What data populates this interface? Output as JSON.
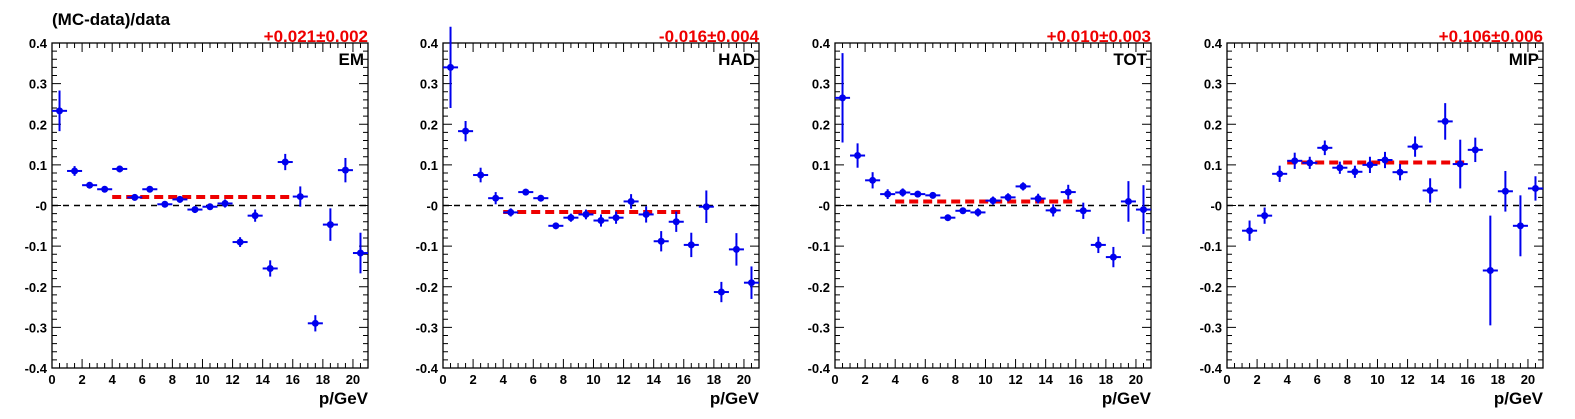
{
  "ylabel": "(MC-data)/data",
  "colors": {
    "points": "#0000ee",
    "fit": "#ee0000",
    "zero": "#000000",
    "fit_text": "#ee0000"
  },
  "chart_data": [
    {
      "type": "scatter",
      "panel_label": "EM",
      "fit_text": "+0.021±0.002",
      "fit": {
        "value": 0.021,
        "x_range": [
          4,
          16
        ]
      },
      "xlabel": "p/GeV",
      "xlim": [
        0,
        21
      ],
      "ylim": [
        -0.4,
        0.4
      ],
      "xticks": [
        0,
        2,
        4,
        6,
        8,
        10,
        12,
        14,
        16,
        18,
        20
      ],
      "yticks": [
        -0.4,
        -0.3,
        -0.2,
        -0.1,
        0,
        0.1,
        0.2,
        0.3,
        0.4
      ],
      "ytick_labels": [
        "-0.4",
        "-0.3",
        "-0.2",
        "-0.1",
        "-0",
        "0.1",
        "0.2",
        "0.3",
        "0.4"
      ],
      "points": [
        {
          "x": 0.5,
          "y": 0.233,
          "err": 0.05
        },
        {
          "x": 1.5,
          "y": 0.085,
          "err": 0.012
        },
        {
          "x": 2.5,
          "y": 0.05,
          "err": 0.008
        },
        {
          "x": 3.5,
          "y": 0.04,
          "err": 0.008
        },
        {
          "x": 4.5,
          "y": 0.09,
          "err": 0.008
        },
        {
          "x": 5.5,
          "y": 0.02,
          "err": 0.008
        },
        {
          "x": 6.5,
          "y": 0.04,
          "err": 0.008
        },
        {
          "x": 7.5,
          "y": 0.003,
          "err": 0.008
        },
        {
          "x": 8.5,
          "y": 0.015,
          "err": 0.008
        },
        {
          "x": 9.5,
          "y": -0.01,
          "err": 0.008
        },
        {
          "x": 10.5,
          "y": -0.003,
          "err": 0.008
        },
        {
          "x": 11.5,
          "y": 0.005,
          "err": 0.01
        },
        {
          "x": 12.5,
          "y": -0.09,
          "err": 0.012
        },
        {
          "x": 13.5,
          "y": -0.025,
          "err": 0.015
        },
        {
          "x": 14.5,
          "y": -0.155,
          "err": 0.02
        },
        {
          "x": 15.5,
          "y": 0.107,
          "err": 0.02
        },
        {
          "x": 16.5,
          "y": 0.022,
          "err": 0.025
        },
        {
          "x": 17.5,
          "y": -0.29,
          "err": 0.02
        },
        {
          "x": 18.5,
          "y": -0.047,
          "err": 0.04
        },
        {
          "x": 19.5,
          "y": 0.087,
          "err": 0.03
        },
        {
          "x": 20.5,
          "y": -0.117,
          "err": 0.05
        }
      ]
    },
    {
      "type": "scatter",
      "panel_label": "HAD",
      "fit_text": "-0.016±0.004",
      "fit": {
        "value": -0.016,
        "x_range": [
          4,
          16
        ]
      },
      "xlabel": "p/GeV",
      "xlim": [
        0,
        21
      ],
      "ylim": [
        -0.4,
        0.4
      ],
      "xticks": [
        0,
        2,
        4,
        6,
        8,
        10,
        12,
        14,
        16,
        18,
        20
      ],
      "yticks": [
        -0.4,
        -0.3,
        -0.2,
        -0.1,
        0,
        0.1,
        0.2,
        0.3,
        0.4
      ],
      "ytick_labels": [
        "-0.4",
        "-0.3",
        "-0.2",
        "-0.1",
        "-0",
        "0.1",
        "0.2",
        "0.3",
        "0.4"
      ],
      "points": [
        {
          "x": 0.5,
          "y": 0.34,
          "err": 0.1
        },
        {
          "x": 1.5,
          "y": 0.183,
          "err": 0.025
        },
        {
          "x": 2.5,
          "y": 0.075,
          "err": 0.018
        },
        {
          "x": 3.5,
          "y": 0.018,
          "err": 0.015
        },
        {
          "x": 4.5,
          "y": -0.017,
          "err": 0.01
        },
        {
          "x": 5.5,
          "y": 0.033,
          "err": 0.008
        },
        {
          "x": 6.5,
          "y": 0.018,
          "err": 0.008
        },
        {
          "x": 7.5,
          "y": -0.05,
          "err": 0.008
        },
        {
          "x": 8.5,
          "y": -0.03,
          "err": 0.01
        },
        {
          "x": 9.5,
          "y": -0.022,
          "err": 0.012
        },
        {
          "x": 10.5,
          "y": -0.037,
          "err": 0.015
        },
        {
          "x": 11.5,
          "y": -0.03,
          "err": 0.015
        },
        {
          "x": 12.5,
          "y": 0.01,
          "err": 0.018
        },
        {
          "x": 13.5,
          "y": -0.022,
          "err": 0.02
        },
        {
          "x": 14.5,
          "y": -0.088,
          "err": 0.025
        },
        {
          "x": 15.5,
          "y": -0.04,
          "err": 0.025
        },
        {
          "x": 16.5,
          "y": -0.097,
          "err": 0.03
        },
        {
          "x": 17.5,
          "y": -0.003,
          "err": 0.04
        },
        {
          "x": 18.5,
          "y": -0.213,
          "err": 0.025
        },
        {
          "x": 19.5,
          "y": -0.108,
          "err": 0.04
        },
        {
          "x": 20.5,
          "y": -0.19,
          "err": 0.04
        }
      ]
    },
    {
      "type": "scatter",
      "panel_label": "TOT",
      "fit_text": "+0.010±0.003",
      "fit": {
        "value": 0.01,
        "x_range": [
          4,
          16
        ]
      },
      "xlabel": "p/GeV",
      "xlim": [
        0,
        21
      ],
      "ylim": [
        -0.4,
        0.4
      ],
      "xticks": [
        0,
        2,
        4,
        6,
        8,
        10,
        12,
        14,
        16,
        18,
        20
      ],
      "yticks": [
        -0.4,
        -0.3,
        -0.2,
        -0.1,
        0,
        0.1,
        0.2,
        0.3,
        0.4
      ],
      "ytick_labels": [
        "-0.4",
        "-0.3",
        "-0.2",
        "-0.1",
        "-0",
        "0.1",
        "0.2",
        "0.3",
        "0.4"
      ],
      "points": [
        {
          "x": 0.5,
          "y": 0.265,
          "err": 0.11
        },
        {
          "x": 1.5,
          "y": 0.123,
          "err": 0.03
        },
        {
          "x": 2.5,
          "y": 0.062,
          "err": 0.02
        },
        {
          "x": 3.5,
          "y": 0.028,
          "err": 0.012
        },
        {
          "x": 4.5,
          "y": 0.032,
          "err": 0.01
        },
        {
          "x": 5.5,
          "y": 0.028,
          "err": 0.008
        },
        {
          "x": 6.5,
          "y": 0.025,
          "err": 0.008
        },
        {
          "x": 7.5,
          "y": -0.03,
          "err": 0.008
        },
        {
          "x": 8.5,
          "y": -0.013,
          "err": 0.008
        },
        {
          "x": 9.5,
          "y": -0.017,
          "err": 0.01
        },
        {
          "x": 10.5,
          "y": 0.012,
          "err": 0.01
        },
        {
          "x": 11.5,
          "y": 0.02,
          "err": 0.01
        },
        {
          "x": 12.5,
          "y": 0.047,
          "err": 0.01
        },
        {
          "x": 13.5,
          "y": 0.017,
          "err": 0.012
        },
        {
          "x": 14.5,
          "y": -0.012,
          "err": 0.015
        },
        {
          "x": 15.5,
          "y": 0.033,
          "err": 0.018
        },
        {
          "x": 16.5,
          "y": -0.013,
          "err": 0.02
        },
        {
          "x": 17.5,
          "y": -0.097,
          "err": 0.02
        },
        {
          "x": 18.5,
          "y": -0.127,
          "err": 0.025
        },
        {
          "x": 19.5,
          "y": 0.01,
          "err": 0.05
        },
        {
          "x": 20.5,
          "y": -0.01,
          "err": 0.06
        }
      ]
    },
    {
      "type": "scatter",
      "panel_label": "MIP",
      "fit_text": "+0.106±0.006",
      "fit": {
        "value": 0.106,
        "x_range": [
          4,
          16
        ]
      },
      "xlabel": "p/GeV",
      "xlim": [
        0,
        21
      ],
      "ylim": [
        -0.4,
        0.4
      ],
      "xticks": [
        0,
        2,
        4,
        6,
        8,
        10,
        12,
        14,
        16,
        18,
        20
      ],
      "yticks": [
        -0.4,
        -0.3,
        -0.2,
        -0.1,
        0,
        0.1,
        0.2,
        0.3,
        0.4
      ],
      "ytick_labels": [
        "-0.4",
        "-0.3",
        "-0.2",
        "-0.1",
        "-0",
        "0.1",
        "0.2",
        "0.3",
        "0.4"
      ],
      "points": [
        {
          "x": 1.5,
          "y": -0.062,
          "err": 0.025
        },
        {
          "x": 2.5,
          "y": -0.025,
          "err": 0.02
        },
        {
          "x": 3.5,
          "y": 0.078,
          "err": 0.02
        },
        {
          "x": 4.5,
          "y": 0.11,
          "err": 0.02
        },
        {
          "x": 5.5,
          "y": 0.105,
          "err": 0.015
        },
        {
          "x": 6.5,
          "y": 0.142,
          "err": 0.018
        },
        {
          "x": 7.5,
          "y": 0.093,
          "err": 0.015
        },
        {
          "x": 8.5,
          "y": 0.083,
          "err": 0.015
        },
        {
          "x": 9.5,
          "y": 0.1,
          "err": 0.02
        },
        {
          "x": 10.5,
          "y": 0.112,
          "err": 0.02
        },
        {
          "x": 11.5,
          "y": 0.082,
          "err": 0.02
        },
        {
          "x": 12.5,
          "y": 0.145,
          "err": 0.025
        },
        {
          "x": 13.5,
          "y": 0.037,
          "err": 0.03
        },
        {
          "x": 14.5,
          "y": 0.207,
          "err": 0.045
        },
        {
          "x": 15.5,
          "y": 0.102,
          "err": 0.06
        },
        {
          "x": 16.5,
          "y": 0.137,
          "err": 0.03
        },
        {
          "x": 17.5,
          "y": -0.16,
          "err": 0.135
        },
        {
          "x": 18.5,
          "y": 0.035,
          "err": 0.05
        },
        {
          "x": 19.5,
          "y": -0.05,
          "err": 0.075
        },
        {
          "x": 20.5,
          "y": 0.042,
          "err": 0.03
        }
      ]
    }
  ]
}
